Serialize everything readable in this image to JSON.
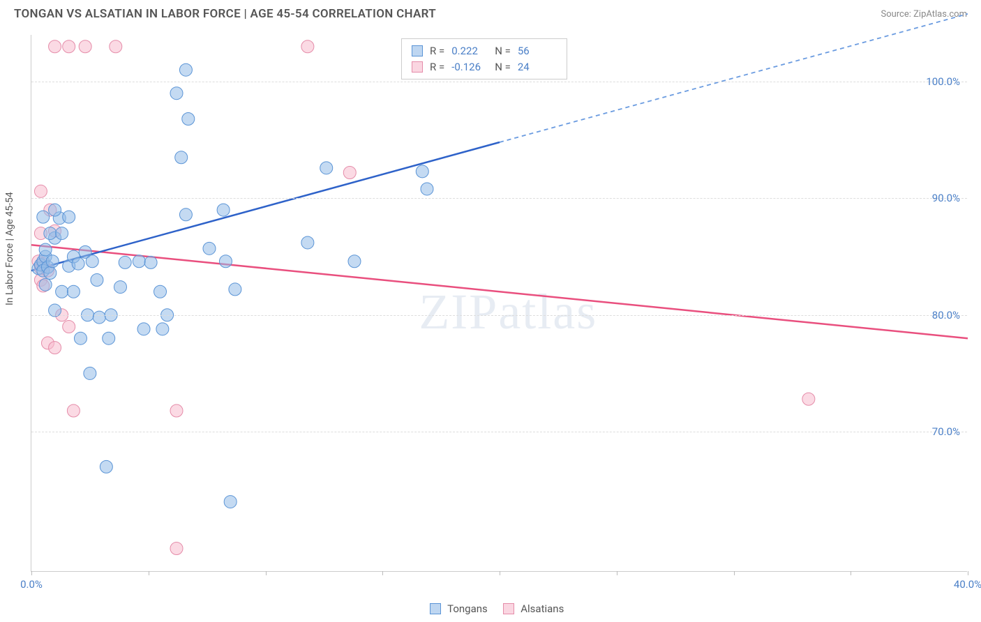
{
  "title": "TONGAN VS ALSATIAN IN LABOR FORCE | AGE 45-54 CORRELATION CHART",
  "source_label": "Source: ZipAtlas.com",
  "y_axis_label": "In Labor Force | Age 45-54",
  "watermark": "ZIPatlas",
  "chart": {
    "type": "scatter",
    "background_color": "#ffffff",
    "grid_color": "#dddddd",
    "axis_color": "#cccccc",
    "marker_radius": 9,
    "xlim": [
      0,
      40
    ],
    "ylim": [
      58,
      104
    ],
    "y_ticks": [
      70,
      80,
      90,
      100
    ],
    "y_tick_labels": [
      "70.0%",
      "80.0%",
      "90.0%",
      "100.0%"
    ],
    "x_tick_positions": [
      0,
      5,
      10,
      15,
      20,
      25,
      30,
      35,
      40
    ],
    "x_labels": {
      "0": "0.0%",
      "40": "40.0%"
    },
    "series": {
      "tongans": {
        "label": "Tongans",
        "fill_color": "rgba(147,187,232,0.55)",
        "stroke_color": "#5a94d6",
        "r_value": "0.222",
        "n_value": "56",
        "trend": {
          "slope": 0.55,
          "intercept": 83.8,
          "solid_until_x": 20,
          "color": "#2e62c9"
        },
        "points": [
          [
            0.3,
            84.0
          ],
          [
            0.4,
            84.3
          ],
          [
            0.5,
            84.6
          ],
          [
            0.6,
            85.0
          ],
          [
            0.5,
            83.8
          ],
          [
            0.7,
            84.1
          ],
          [
            0.8,
            83.6
          ],
          [
            0.6,
            85.6
          ],
          [
            0.9,
            84.6
          ],
          [
            1.0,
            86.6
          ],
          [
            0.8,
            87.0
          ],
          [
            0.5,
            88.4
          ],
          [
            1.2,
            88.3
          ],
          [
            1.0,
            89.0
          ],
          [
            1.3,
            87.0
          ],
          [
            1.6,
            84.2
          ],
          [
            1.8,
            85.0
          ],
          [
            2.0,
            84.4
          ],
          [
            2.3,
            85.4
          ],
          [
            2.6,
            84.6
          ],
          [
            2.8,
            83.0
          ],
          [
            1.6,
            88.4
          ],
          [
            1.3,
            82.0
          ],
          [
            1.8,
            82.0
          ],
          [
            2.4,
            80.0
          ],
          [
            2.9,
            79.8
          ],
          [
            3.4,
            80.0
          ],
          [
            3.8,
            82.4
          ],
          [
            4.0,
            84.5
          ],
          [
            4.6,
            84.6
          ],
          [
            5.1,
            84.5
          ],
          [
            5.5,
            82.0
          ],
          [
            5.8,
            80.0
          ],
          [
            5.6,
            78.8
          ],
          [
            3.3,
            78.0
          ],
          [
            2.1,
            78.0
          ],
          [
            2.5,
            75.0
          ],
          [
            4.8,
            78.8
          ],
          [
            6.6,
            101.0
          ],
          [
            6.7,
            96.8
          ],
          [
            6.2,
            99.0
          ],
          [
            6.4,
            93.5
          ],
          [
            6.6,
            88.6
          ],
          [
            8.2,
            89.0
          ],
          [
            7.6,
            85.7
          ],
          [
            8.3,
            84.6
          ],
          [
            8.7,
            82.2
          ],
          [
            8.5,
            64.0
          ],
          [
            11.8,
            86.2
          ],
          [
            12.6,
            92.6
          ],
          [
            13.8,
            84.6
          ],
          [
            16.7,
            92.3
          ],
          [
            16.9,
            90.8
          ],
          [
            3.2,
            67.0
          ],
          [
            1.0,
            80.4
          ],
          [
            0.6,
            82.6
          ]
        ]
      },
      "alsatians": {
        "label": "Alsatians",
        "fill_color": "rgba(247,187,205,0.55)",
        "stroke_color": "#e58ca9",
        "r_value": "-0.126",
        "n_value": "24",
        "trend": {
          "slope": -0.2,
          "intercept": 86.0,
          "color": "#e94f7e"
        },
        "points": [
          [
            0.3,
            84.6
          ],
          [
            0.4,
            84.0
          ],
          [
            0.4,
            83.0
          ],
          [
            0.5,
            84.4
          ],
          [
            0.5,
            82.5
          ],
          [
            0.7,
            83.8
          ],
          [
            0.4,
            87.0
          ],
          [
            0.8,
            89.0
          ],
          [
            0.4,
            90.6
          ],
          [
            1.0,
            87.2
          ],
          [
            1.0,
            103.0
          ],
          [
            1.6,
            103.0
          ],
          [
            2.3,
            103.0
          ],
          [
            3.6,
            103.0
          ],
          [
            11.8,
            103.0
          ],
          [
            1.3,
            80.0
          ],
          [
            1.6,
            79.0
          ],
          [
            0.7,
            77.6
          ],
          [
            1.0,
            77.2
          ],
          [
            1.8,
            71.8
          ],
          [
            6.2,
            71.8
          ],
          [
            6.2,
            60.0
          ],
          [
            13.6,
            92.2
          ],
          [
            33.2,
            72.8
          ]
        ]
      }
    }
  },
  "stats_box": {
    "r_label": "R =",
    "n_label": "N ="
  },
  "legend_bottom": {
    "series1": "Tongans",
    "series2": "Alsatians"
  }
}
